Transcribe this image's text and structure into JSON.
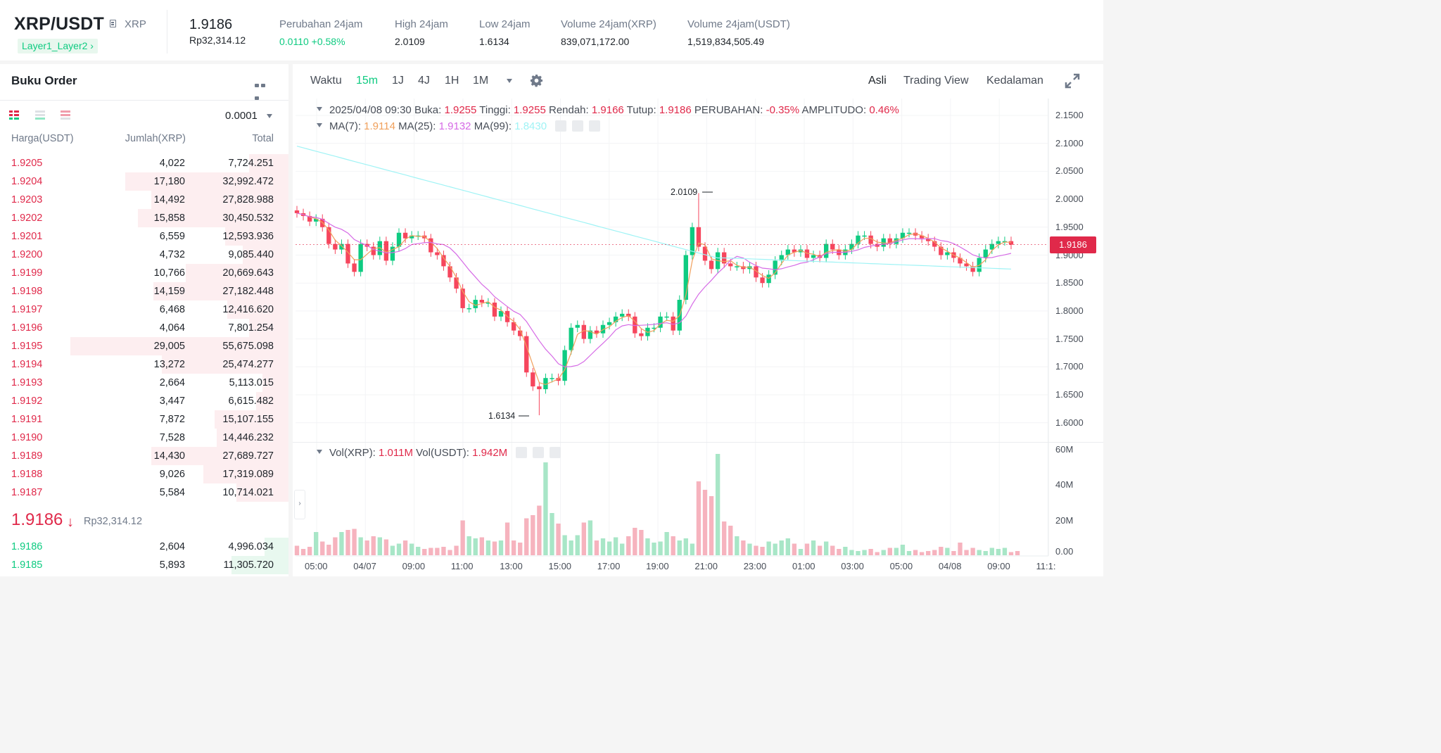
{
  "header": {
    "pair": "XRP/USDT",
    "coin": "XRP",
    "tag": "Layer1_Layer2",
    "last_price": "1.9186",
    "last_price_idr": "Rp32,314.12",
    "stats": [
      {
        "label": "Perubahan 24jam",
        "value": "0.0110 +0.58%",
        "color": "green"
      },
      {
        "label": "High 24jam",
        "value": "2.0109",
        "color": "none"
      },
      {
        "label": "Low 24jam",
        "value": "1.6134",
        "color": "none"
      },
      {
        "label": "Volume 24jam(XRP)",
        "value": "839,071,172.00",
        "color": "none"
      },
      {
        "label": "Volume 24jam(USDT)",
        "value": "1,519,834,505.49",
        "color": "none"
      }
    ]
  },
  "orderbook": {
    "title": "Buku Order",
    "precision": "0.0001",
    "col_price": "Harga(USDT)",
    "col_amount": "Jumlah(XRP)",
    "col_total": "Total",
    "asks": [
      {
        "price": "1.9205",
        "amount": "4,022",
        "total": "7,724.251",
        "depth": 0.18
      },
      {
        "price": "1.9204",
        "amount": "17,180",
        "total": "32,992.472",
        "depth": 0.75
      },
      {
        "price": "1.9203",
        "amount": "14,492",
        "total": "27,828.988",
        "depth": 0.63
      },
      {
        "price": "1.9202",
        "amount": "15,858",
        "total": "30,450.532",
        "depth": 0.69
      },
      {
        "price": "1.9201",
        "amount": "6,559",
        "total": "12,593.936",
        "depth": 0.29
      },
      {
        "price": "1.9200",
        "amount": "4,732",
        "total": "9,085.440",
        "depth": 0.21
      },
      {
        "price": "1.9199",
        "amount": "10,766",
        "total": "20,669.643",
        "depth": 0.47
      },
      {
        "price": "1.9198",
        "amount": "14,159",
        "total": "27,182.448",
        "depth": 0.62
      },
      {
        "price": "1.9197",
        "amount": "6,468",
        "total": "12,416.620",
        "depth": 0.28
      },
      {
        "price": "1.9196",
        "amount": "4,064",
        "total": "7,801.254",
        "depth": 0.18
      },
      {
        "price": "1.9195",
        "amount": "29,005",
        "total": "55,675.098",
        "depth": 1.0
      },
      {
        "price": "1.9194",
        "amount": "13,272",
        "total": "25,474.277",
        "depth": 0.58
      },
      {
        "price": "1.9193",
        "amount": "2,664",
        "total": "5,113.015",
        "depth": 0.12
      },
      {
        "price": "1.9192",
        "amount": "3,447",
        "total": "6,615.482",
        "depth": 0.15
      },
      {
        "price": "1.9191",
        "amount": "7,872",
        "total": "15,107.155",
        "depth": 0.34
      },
      {
        "price": "1.9190",
        "amount": "7,528",
        "total": "14,446.232",
        "depth": 0.33
      },
      {
        "price": "1.9189",
        "amount": "14,430",
        "total": "27,689.727",
        "depth": 0.63
      },
      {
        "price": "1.9188",
        "amount": "9,026",
        "total": "17,319.089",
        "depth": 0.39
      },
      {
        "price": "1.9187",
        "amount": "5,584",
        "total": "10,714.021",
        "depth": 0.24
      }
    ],
    "last_price": "1.9186",
    "last_arrow": "↓",
    "last_price_idr": "Rp32,314.12",
    "bids": [
      {
        "price": "1.9186",
        "amount": "2,604",
        "total": "4,996.034",
        "depth": 0.11
      },
      {
        "price": "1.9185",
        "amount": "5,893",
        "total": "11,305.720",
        "depth": 0.26
      }
    ]
  },
  "chart": {
    "toolbar": {
      "intervals": [
        "Waktu",
        "15m",
        "1J",
        "4J",
        "1H",
        "1M"
      ],
      "active": "15m",
      "views": [
        "Asli",
        "Trading View",
        "Kedalaman"
      ],
      "active_view": "Asli"
    },
    "info": {
      "date": "2025/04/08 09:30",
      "open_label": "Buka:",
      "open": "1.9255",
      "high_label": "Tinggi:",
      "high": "1.9255",
      "low_label": "Rendah:",
      "low": "1.9166",
      "close_label": "Tutup:",
      "close": "1.9186",
      "change_label": "PERUBAHAN:",
      "change": "-0.35%",
      "amp_label": "AMPLITUDO:",
      "amp": "0.46%"
    },
    "ma": {
      "ma7_label": "MA(7):",
      "ma7": "1.9114",
      "ma25_label": "MA(25):",
      "ma25": "1.9132",
      "ma99_label": "MA(99):",
      "ma99": "1.8430"
    },
    "vol": {
      "xrp_label": "Vol(XRP):",
      "xrp": "1.011M",
      "usdt_label": "Vol(USDT):",
      "usdt": "1.942M"
    },
    "high_marker": "2.0109",
    "low_marker": "1.6134",
    "price_tag": "1.9186",
    "colors": {
      "up": "#0ecb81",
      "down": "#f6465d",
      "ma7": "#f0a05c",
      "ma25": "#d66be6",
      "ma99": "#9ff3f5"
    }
  },
  "chart_data": {
    "type": "candlestick",
    "y_axis": [
      "2.1500",
      "2.1000",
      "2.0500",
      "2.0000",
      "1.9500",
      "1.9000",
      "1.8500",
      "1.8000",
      "1.7500",
      "1.7000",
      "1.6500",
      "1.6000"
    ],
    "vol_axis": [
      "60M",
      "40M",
      "20M",
      "0.00"
    ],
    "x_ticks": [
      "05:00",
      "04/07",
      "09:00",
      "11:00",
      "13:00",
      "15:00",
      "17:00",
      "19:00",
      "21:00",
      "23:00",
      "01:00",
      "03:00",
      "05:00",
      "04/08",
      "09:00",
      "11:1:"
    ],
    "close": [
      1.975,
      1.97,
      1.96,
      1.965,
      1.95,
      1.92,
      1.91,
      1.92,
      1.885,
      1.87,
      1.92,
      1.915,
      1.9,
      1.925,
      1.89,
      1.915,
      1.94,
      1.93,
      1.935,
      1.935,
      1.93,
      1.905,
      1.9,
      1.88,
      1.86,
      1.84,
      1.805,
      1.805,
      1.82,
      1.815,
      1.815,
      1.79,
      1.8,
      1.78,
      1.765,
      1.755,
      1.69,
      1.665,
      1.66,
      1.68,
      1.68,
      1.675,
      1.73,
      1.77,
      1.775,
      1.75,
      1.765,
      1.76,
      1.775,
      1.78,
      1.79,
      1.795,
      1.79,
      1.76,
      1.755,
      1.77,
      1.77,
      1.79,
      1.79,
      1.765,
      1.82,
      1.9,
      1.95,
      1.915,
      1.89,
      1.875,
      1.905,
      1.885,
      1.88,
      1.88,
      1.875,
      1.88,
      1.86,
      1.85,
      1.865,
      1.89,
      1.9,
      1.91,
      1.905,
      1.91,
      1.895,
      1.9,
      1.895,
      1.92,
      1.91,
      1.9,
      1.91,
      1.92,
      1.935,
      1.935,
      1.92,
      1.915,
      1.93,
      1.92,
      1.93,
      1.94,
      1.94,
      1.935,
      1.93,
      1.925,
      1.915,
      1.9,
      1.905,
      1.895,
      1.885,
      1.88,
      1.87,
      1.895,
      1.91,
      1.92,
      1.925,
      1.925,
      1.9186
    ],
    "volume_relative": [
      0.09,
      0.06,
      0.08,
      0.22,
      0.13,
      0.1,
      0.17,
      0.22,
      0.24,
      0.25,
      0.17,
      0.14,
      0.18,
      0.17,
      0.15,
      0.09,
      0.11,
      0.14,
      0.11,
      0.08,
      0.06,
      0.07,
      0.07,
      0.08,
      0.05,
      0.09,
      0.33,
      0.18,
      0.16,
      0.17,
      0.14,
      0.13,
      0.14,
      0.31,
      0.14,
      0.12,
      0.35,
      0.38,
      0.47,
      0.88,
      0.4,
      0.3,
      0.19,
      0.14,
      0.19,
      0.31,
      0.33,
      0.14,
      0.16,
      0.13,
      0.17,
      0.11,
      0.18,
      0.26,
      0.24,
      0.16,
      0.12,
      0.13,
      0.22,
      0.18,
      0.14,
      0.16,
      0.11,
      0.7,
      0.62,
      0.56,
      0.96,
      0.32,
      0.28,
      0.18,
      0.14,
      0.11,
      0.09,
      0.08,
      0.13,
      0.11,
      0.14,
      0.16,
      0.11,
      0.06,
      0.11,
      0.14,
      0.09,
      0.13,
      0.09,
      0.06,
      0.08,
      0.05,
      0.04,
      0.05,
      0.06,
      0.03,
      0.05,
      0.07,
      0.07,
      0.1,
      0.04,
      0.05,
      0.03,
      0.04,
      0.05,
      0.08,
      0.07,
      0.04,
      0.12,
      0.05,
      0.07,
      0.05,
      0.04,
      0.07,
      0.06,
      0.07,
      0.03,
      0.04
    ]
  }
}
